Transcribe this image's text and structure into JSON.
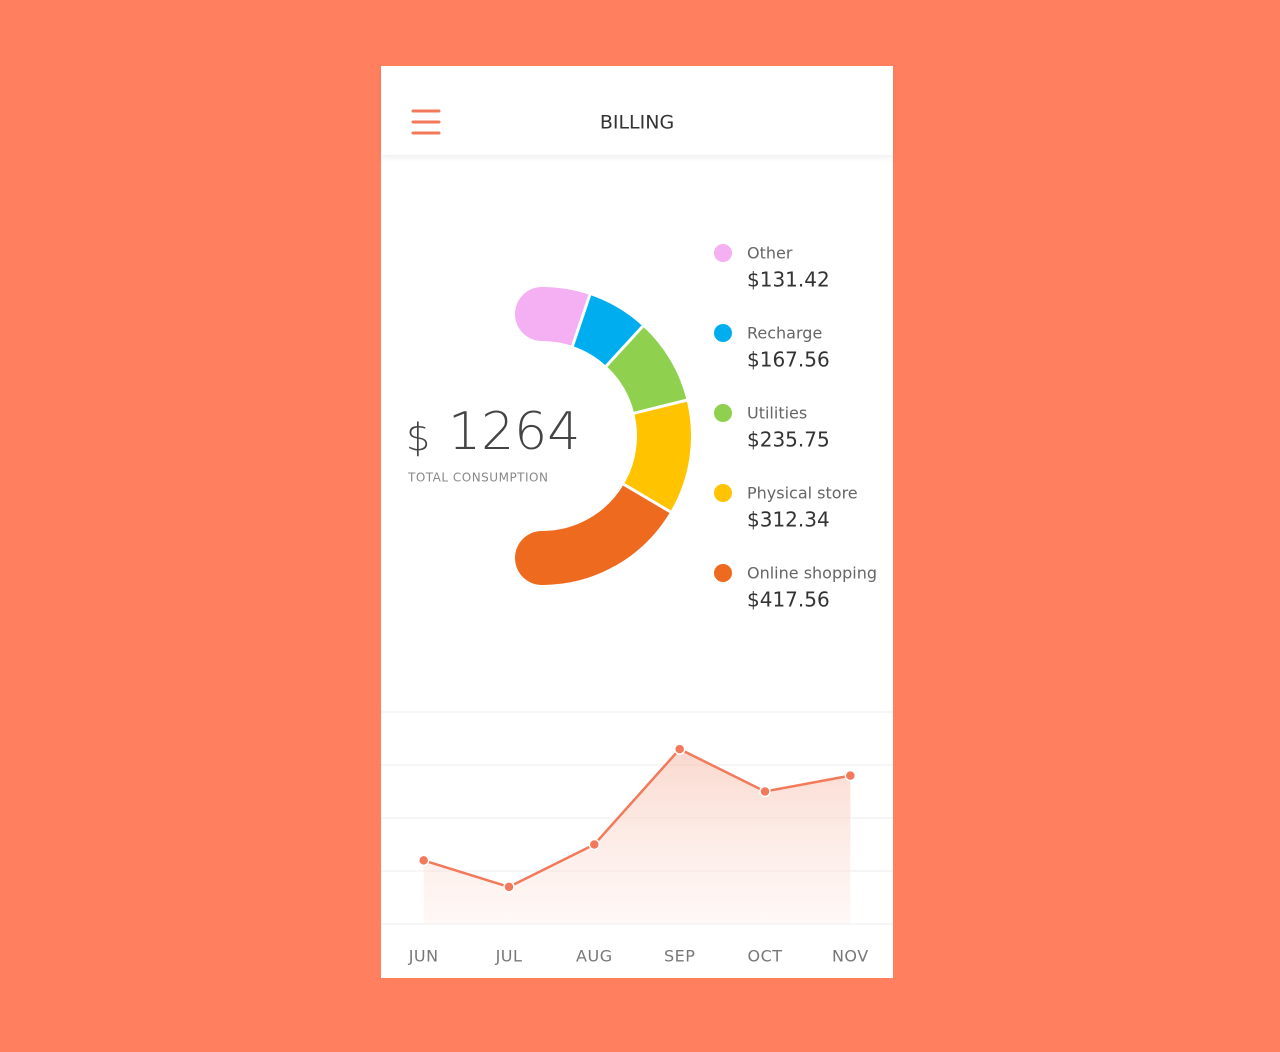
{
  "header": {
    "title": "BILLING"
  },
  "summary": {
    "currency": "$",
    "total": 1264,
    "label": "TOTAL CONSUMPTION"
  },
  "chart_data": [
    {
      "type": "donut",
      "categories": [
        "Other",
        "Recharge",
        "Utilities",
        "Physical store",
        "Online shopping"
      ],
      "values": [
        131.42,
        167.56,
        235.75,
        312.34,
        417.56
      ],
      "value_labels": [
        "$131.42",
        "$167.56",
        "$235.75",
        "$312.34",
        "$417.56"
      ],
      "colors": [
        "#f4b0f2",
        "#00aeef",
        "#8fd14f",
        "#ffc300",
        "#ee6a1f"
      ]
    },
    {
      "type": "area-line",
      "categories": [
        "JUN",
        "JUL",
        "AUG",
        "SEP",
        "OCT",
        "NOV"
      ],
      "values": [
        1.2,
        0.7,
        1.5,
        3.3,
        2.5,
        2.8
      ],
      "color": "#f27a5a",
      "ylim": [
        0,
        4
      ],
      "yticks": [
        0,
        1,
        2,
        3,
        4
      ],
      "ytick_labels_visible": false,
      "grid": true
    }
  ]
}
